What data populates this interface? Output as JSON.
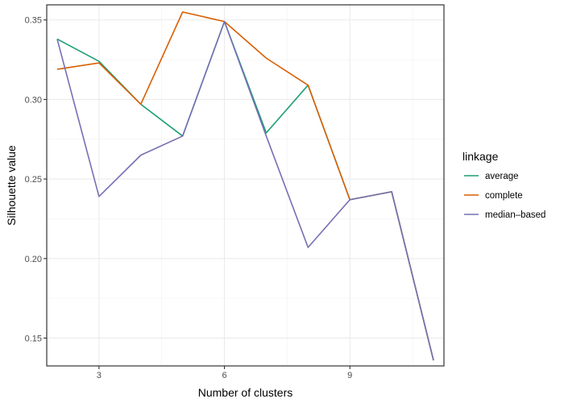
{
  "chart_data": {
    "type": "line",
    "title": "",
    "xlabel": "Number of clusters",
    "ylabel": "Silhouette value",
    "xlim": [
      1.75,
      11.25
    ],
    "ylim": [
      0.1325,
      0.3595
    ],
    "x_ticks": [
      3,
      6,
      9
    ],
    "y_ticks": [
      0.15,
      0.2,
      0.25,
      0.3,
      0.35
    ],
    "y_tick_labels": [
      "0.15",
      "0.20",
      "0.25",
      "0.30",
      "0.35"
    ],
    "grid": true,
    "legend": {
      "title": "linkage",
      "placement": "right"
    },
    "series": [
      {
        "name": "average",
        "color": "#1B9E77",
        "x": [
          2,
          3,
          4,
          5,
          6,
          7,
          8,
          9,
          10,
          11
        ],
        "y": [
          0.338,
          0.324,
          0.297,
          0.277,
          0.349,
          0.279,
          0.309,
          0.237,
          0.242,
          0.136
        ]
      },
      {
        "name": "complete",
        "color": "#D95F02",
        "x": [
          2,
          3,
          4,
          5,
          6,
          7,
          8,
          9,
          10,
          11
        ],
        "y": [
          0.319,
          0.323,
          0.297,
          0.355,
          0.349,
          0.326,
          0.309,
          0.237,
          0.242,
          0.136
        ]
      },
      {
        "name": "median–based",
        "color": "#7570B3",
        "x": [
          2,
          3,
          4,
          5,
          6,
          7,
          8,
          9,
          10,
          11
        ],
        "y": [
          0.338,
          0.239,
          0.265,
          0.277,
          0.349,
          0.277,
          0.207,
          0.237,
          0.242,
          0.136
        ]
      }
    ]
  }
}
